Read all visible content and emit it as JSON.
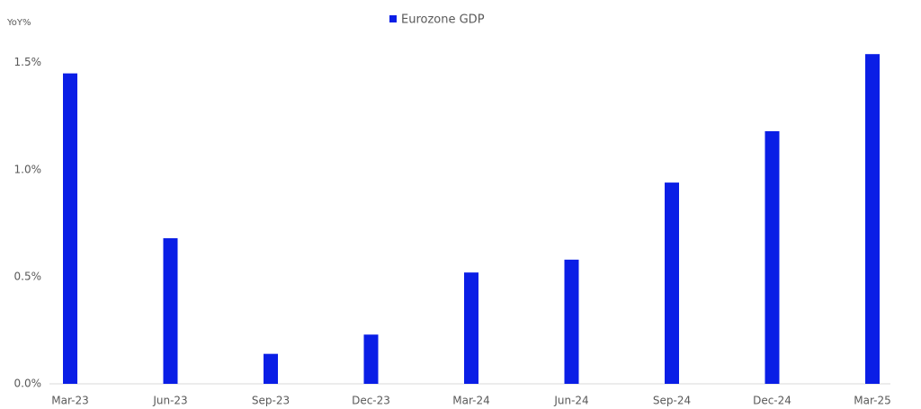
{
  "chart_data": {
    "type": "bar",
    "y_axis_label": "YoY%",
    "categories": [
      "Mar-23",
      "Jun-23",
      "Sep-23",
      "Dec-23",
      "Mar-24",
      "Jun-24",
      "Sep-24",
      "Dec-24",
      "Mar-25"
    ],
    "series": [
      {
        "name": "Eurozone GDP",
        "color": "#0a1ee6",
        "values": [
          1.45,
          0.68,
          0.14,
          0.23,
          0.52,
          0.58,
          0.94,
          1.18,
          1.54
        ]
      }
    ],
    "ylim": [
      0,
      1.65
    ],
    "yticks": [
      {
        "value": 0,
        "label": "0.0%"
      },
      {
        "value": 0.5,
        "label": "0.5%"
      },
      {
        "value": 1.0,
        "label": "1.0%"
      },
      {
        "value": 1.5,
        "label": "1.5%"
      }
    ],
    "grid": false,
    "legend": "top"
  }
}
